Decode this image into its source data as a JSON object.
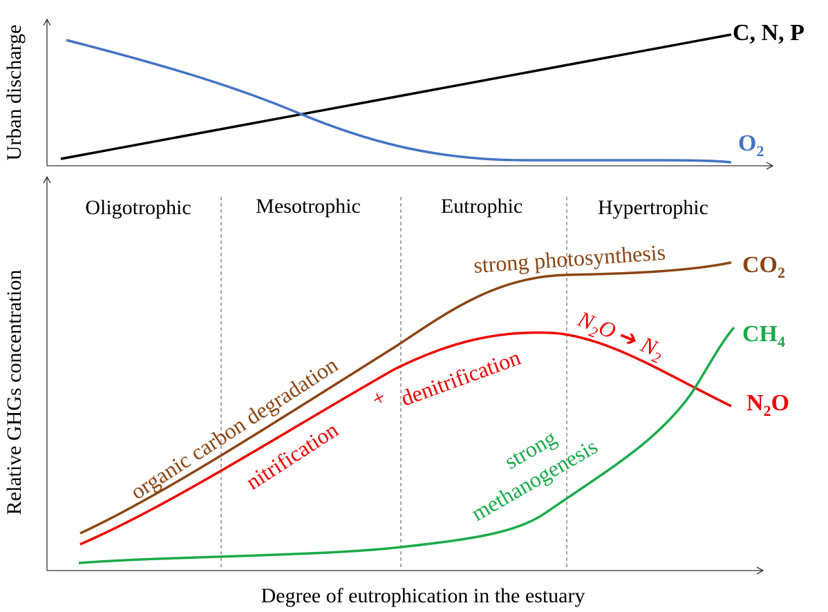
{
  "colors": {
    "axis": "#333333",
    "cnp": "#000000",
    "o2": "#4472C4",
    "co2": "#8B4513",
    "n2o": "#EE0000",
    "ch4": "#1AAA4A",
    "divider": "#777777"
  },
  "top_panel": {
    "ylabel": "Urban discharge",
    "cnp_label": "C, N, P",
    "o2_label": {
      "base": "O",
      "sub": "2"
    }
  },
  "bottom_panel": {
    "ylabel": "Relative GHGs concentration",
    "xlabel": "Degree of eutrophication in the estuary",
    "stages": [
      "Oligotrophic",
      "Mesotrophic",
      "Eutrophic",
      "Hypertrophic"
    ],
    "gases": {
      "co2": {
        "base": "CO",
        "sub": "2"
      },
      "ch4": {
        "base": "CH",
        "sub": "4"
      },
      "n2o": {
        "base": "N",
        "sub": "2",
        "tail": "O"
      }
    },
    "annotations": {
      "photosynthesis": "strong photosynthesis",
      "degradation": "organic carbon degradation",
      "nitrification": "nitrification",
      "plus": "+",
      "denitrification": "denitrification",
      "methanogenesis_1": "strong",
      "methanogenesis_2": "methanogenesis",
      "conversion": {
        "from_base": "N",
        "from_sub": "2",
        "from_tail": "O",
        "arrow": "➔",
        "to_base": "N",
        "to_sub": "2"
      }
    }
  }
}
